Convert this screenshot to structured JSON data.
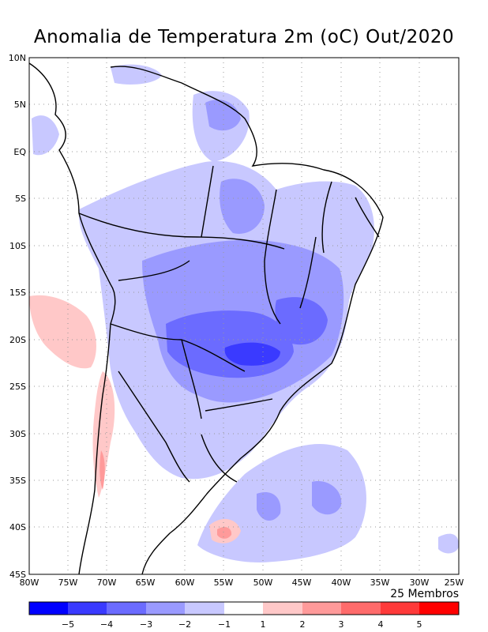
{
  "title": "Anomalia de Temperatura 2m (oC) Out/2020",
  "members_label": "25 Membros",
  "lon_ticks": [
    "80W",
    "75W",
    "70W",
    "65W",
    "60W",
    "55W",
    "50W",
    "45W",
    "40W",
    "35W",
    "30W",
    "25W"
  ],
  "lat_ticks": [
    "10N",
    "5N",
    "EQ",
    "5S",
    "10S",
    "15S",
    "20S",
    "25S",
    "30S",
    "35S",
    "40S",
    "45S"
  ],
  "legend": {
    "labels": [
      "-5",
      "-4",
      "-3",
      "-2",
      "-1",
      "1",
      "2",
      "3",
      "4",
      "5"
    ],
    "colors": [
      "#0000ff",
      "#3a3aff",
      "#6b6bff",
      "#9a9aff",
      "#c8c8ff",
      "#ffffff",
      "#ffc8c8",
      "#ff9a9a",
      "#ff6b6b",
      "#ff3a3a",
      "#ff0000"
    ]
  }
}
